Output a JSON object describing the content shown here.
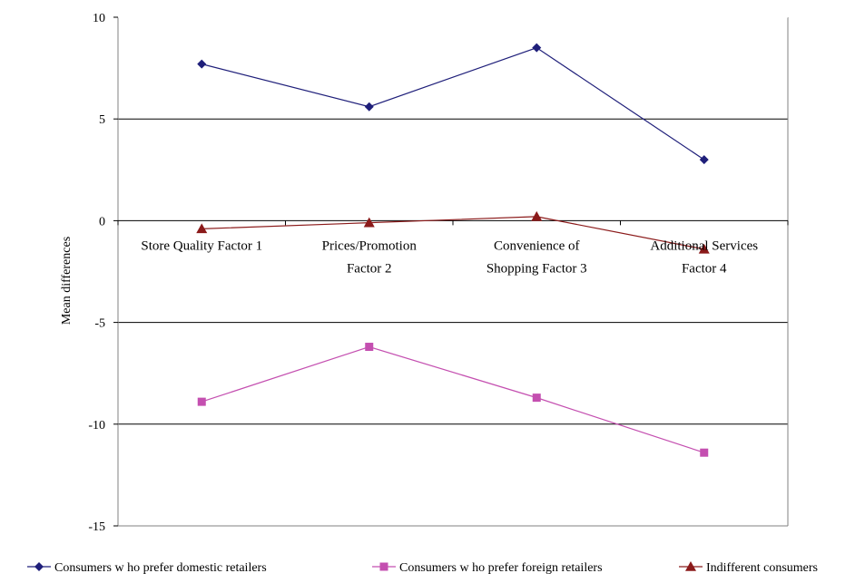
{
  "chart_data": {
    "type": "line",
    "title": "",
    "xlabel": "",
    "ylabel": "Mean differences",
    "ylim": [
      -15,
      10
    ],
    "yticks": [
      10,
      5,
      0,
      -5,
      -10,
      -15
    ],
    "grid": true,
    "legend_position": "bottom",
    "categories": [
      {
        "line1": "Store Quality Factor 1",
        "line2": ""
      },
      {
        "line1": "Prices/Promotion",
        "line2": "Factor 2"
      },
      {
        "line1": "Convenience of",
        "line2": "Shopping Factor 3"
      },
      {
        "line1": "Additional Services",
        "line2": "Factor 4"
      }
    ],
    "series": [
      {
        "name": "Consumers w ho prefer domestic retailers",
        "marker": "diamond",
        "color": "#1f1f7a",
        "values": [
          7.7,
          5.6,
          8.5,
          3.0
        ]
      },
      {
        "name": "Consumers w ho prefer foreign retailers",
        "marker": "square",
        "color": "#c44fb0",
        "values": [
          -8.9,
          -6.2,
          -8.7,
          -11.4
        ]
      },
      {
        "name": "Indifferent consumers",
        "marker": "triangle",
        "color": "#8b1a1a",
        "values": [
          -0.4,
          -0.1,
          0.2,
          -1.4
        ]
      }
    ]
  }
}
